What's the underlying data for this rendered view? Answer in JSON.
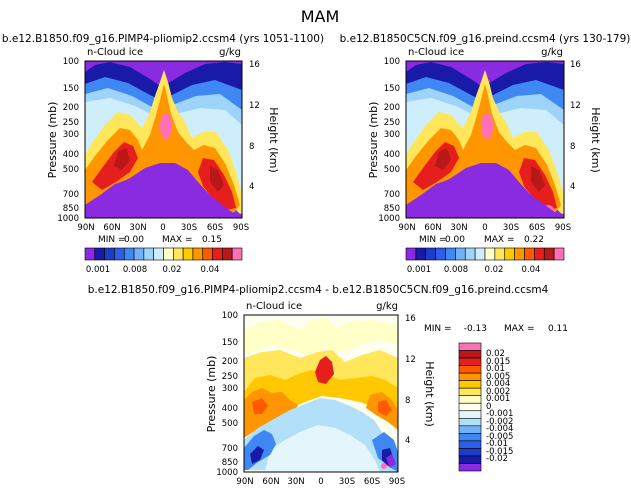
{
  "figure": {
    "title": "MAM"
  },
  "colors": {
    "a": [
      "#8a2be2",
      "#1a1aa8",
      "#1e3ccc",
      "#2d5ee8",
      "#3f87f2",
      "#6fb2f7",
      "#9ed4fa",
      "#cfeefb",
      "#ffffc8",
      "#ffe65a",
      "#ffc800",
      "#ff9600",
      "#ff5a00",
      "#e61e1e",
      "#b81818",
      "#ff70b4"
    ],
    "diff": [
      "#8a2be2",
      "#1a1aa8",
      "#1e3ccc",
      "#2d5ee8",
      "#3f87f2",
      "#6fb2f7",
      "#b2e0fa",
      "#e4f6fb",
      "#fffff0",
      "#ffffc8",
      "#ffe65a",
      "#ffc800",
      "#ff9600",
      "#ff5a00",
      "#e61e1e",
      "#b81818",
      "#ff70b4"
    ]
  },
  "chart_data": [
    {
      "type": "heatmap",
      "title": "b.e12.B1850.f09_g16.PIMP4-pliomip2.ccsm4 (yrs 1051-1100)",
      "subtitle": "n-Cloud ice",
      "units": "g/kg",
      "xlabel": "",
      "ylabel": "Pressure (mb)",
      "y2label": "Height (km)",
      "x_ticks": [
        "90N",
        "60N",
        "30N",
        "0",
        "30S",
        "60S",
        "90S"
      ],
      "y_ticks": [
        "100",
        "150",
        "200",
        "250",
        "300",
        "400",
        "500",
        "700",
        "850",
        "1000"
      ],
      "y2_ticks": [
        "16",
        "12",
        "8",
        "4"
      ],
      "min_label": "MIN =",
      "min_value": "0.00",
      "max_label": "MAX =",
      "max_value": "0.15",
      "colorbar_labels": [
        "0.001",
        "0.008",
        "0.02",
        "0.04"
      ]
    },
    {
      "type": "heatmap",
      "title": "b.e12.B1850C5CN.f09_g16.preind.ccsm4 (yrs 130-179)",
      "subtitle": "n-Cloud ice",
      "units": "g/kg",
      "xlabel": "",
      "ylabel": "Pressure (mb)",
      "y2label": "Height (km)",
      "x_ticks": [
        "90N",
        "60N",
        "30N",
        "0",
        "30S",
        "60S",
        "90S"
      ],
      "y_ticks": [
        "100",
        "150",
        "200",
        "250",
        "300",
        "400",
        "500",
        "700",
        "850",
        "1000"
      ],
      "y2_ticks": [
        "16",
        "12",
        "8",
        "4"
      ],
      "min_label": "MIN =",
      "min_value": "0.00",
      "max_label": "MAX =",
      "max_value": "0.22",
      "colorbar_labels": [
        "0.001",
        "0.008",
        "0.02",
        "0.04"
      ]
    },
    {
      "type": "heatmap",
      "title": "b.e12.B1850.f09_g16.PIMP4-pliomip2.ccsm4 - b.e12.B1850C5CN.f09_g16.preind.ccsm4",
      "subtitle": "n-Cloud ice",
      "units": "g/kg",
      "xlabel": "",
      "ylabel": "Pressure (mb)",
      "y2label": "Height (km)",
      "x_ticks": [
        "90N",
        "60N",
        "30N",
        "0",
        "30S",
        "60S",
        "90S"
      ],
      "y_ticks": [
        "100",
        "150",
        "200",
        "250",
        "300",
        "400",
        "500",
        "700",
        "850",
        "1000"
      ],
      "y2_ticks": [
        "16",
        "12",
        "8",
        "4"
      ],
      "min_label": "MIN =",
      "min_value": "-0.13",
      "max_label": "MAX =",
      "max_value": "0.11",
      "colorbar_labels": [
        "0.02",
        "0.015",
        "0.01",
        "0.005",
        "0.004",
        "0.002",
        "0.001",
        "0",
        "-0.001",
        "-0.002",
        "-0.004",
        "-0.005",
        "-0.01",
        "-0.015",
        "-0.02"
      ]
    }
  ]
}
